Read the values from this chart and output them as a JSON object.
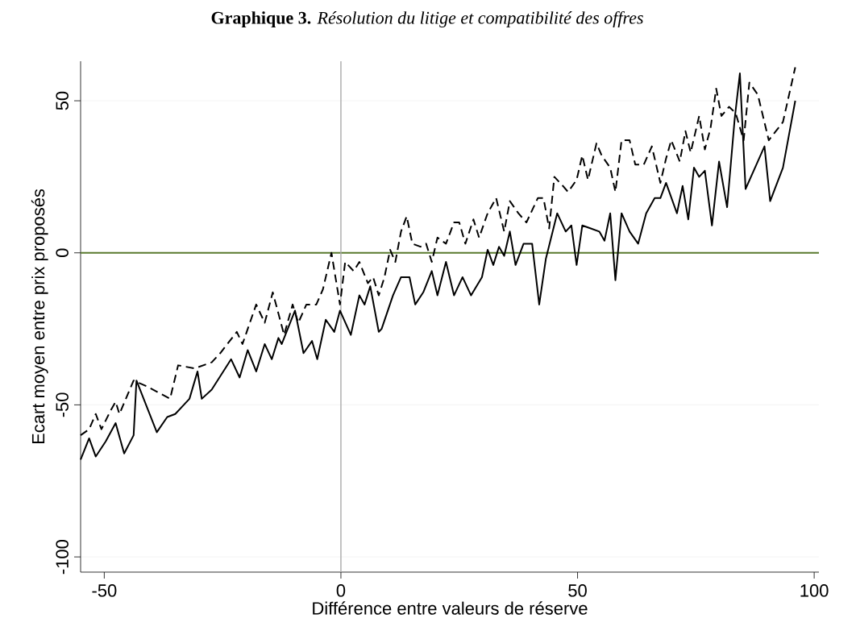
{
  "chart_data": {
    "type": "line",
    "title": "**Graphique 3.** *Résolution du litige et compatibilité des offres*",
    "xlabel": "Différence entre valeurs de réserve",
    "ylabel": "Ecart moyen entre prix proposés",
    "xlim": [
      -55,
      101
    ],
    "ylim": [
      -105,
      63
    ],
    "xticks": [
      -50,
      0,
      50,
      100
    ],
    "yticks": [
      -100,
      -50,
      0,
      50
    ],
    "grid": "y",
    "ref_lines": [
      {
        "axis": "y",
        "value": 0,
        "color": "#5a7a2e",
        "line_style": "solid"
      },
      {
        "axis": "x",
        "value": 0,
        "color": "#aaaaaa",
        "line_style": "solid"
      }
    ],
    "series": [
      {
        "color": "#000000",
        "line_style": "solid",
        "x": [
          -55,
          -53.2,
          -51.8,
          -49.7,
          -47.6,
          -45.8,
          -43.8,
          -43.2,
          -38.9,
          -36.7,
          -35,
          -32,
          -30.3,
          -29.4,
          -27.3,
          -23.2,
          -21.4,
          -19.7,
          -17.9,
          -16.1,
          -14.6,
          -13.2,
          -12.5,
          -9.7,
          -7.9,
          -6.1,
          -5,
          -3.2,
          -1.4,
          -0.2,
          2.1,
          3.9,
          5,
          6.2,
          8,
          8.6,
          11,
          12.7,
          14.5,
          15.7,
          17.4,
          19.2,
          20.4,
          22.2,
          23.9,
          25.7,
          27.5,
          29.8,
          31,
          32.2,
          33.4,
          34.5,
          35.7,
          36.9,
          38.6,
          40.4,
          41.9,
          43.3,
          45.7,
          47.5,
          48.7,
          49.8,
          51,
          52.8,
          54.6,
          55.7,
          56.9,
          58,
          59.3,
          61,
          62.8,
          64.5,
          66.3,
          67.5,
          68.7,
          71,
          72.2,
          73.4,
          74.6,
          75.7,
          76.9,
          78.4,
          79.9,
          81.6,
          83.2,
          84.3,
          85.5,
          87.5,
          89.5,
          90.7,
          93.4,
          96
        ],
        "values": [
          -68,
          -61,
          -67,
          -62,
          -56,
          -66,
          -60,
          -42,
          -59,
          -54,
          -53,
          -48,
          -39,
          -48,
          -45,
          -35,
          -41,
          -32,
          -39,
          -30,
          -35,
          -28,
          -30,
          -19,
          -33,
          -29,
          -35,
          -22,
          -26,
          -19,
          -27,
          -14,
          -17,
          -11,
          -26,
          -25,
          -14,
          -8,
          -8,
          -17,
          -13,
          -6,
          -14,
          -3,
          -14,
          -8,
          -14,
          -8,
          1,
          -4,
          2,
          -1,
          7,
          -4,
          3,
          3,
          -17,
          -2,
          13,
          7,
          9,
          -4,
          9,
          8,
          7,
          4,
          13,
          -9,
          13,
          7,
          3,
          13,
          18,
          18,
          23,
          13,
          22,
          11,
          28,
          25,
          27,
          9,
          30,
          15,
          44,
          59,
          21,
          28,
          35,
          17,
          28,
          50
        ]
      },
      {
        "color": "#000000",
        "line_style": "dashed",
        "x": [
          -55,
          -53.2,
          -51.8,
          -50.6,
          -48.7,
          -47.6,
          -46.8,
          -43.8,
          -40.9,
          -36.1,
          -34.4,
          -30.9,
          -27.3,
          -25.5,
          -22,
          -20.8,
          -17.9,
          -16.1,
          -14.4,
          -12,
          -10.2,
          -9,
          -7.3,
          -5.2,
          -3.8,
          -2,
          -0.2,
          0.9,
          2.7,
          3.9,
          5.7,
          6.8,
          8,
          9.2,
          10.4,
          11.5,
          12.7,
          13.9,
          15.1,
          16.8,
          18,
          19.2,
          20.4,
          22.2,
          23.9,
          25,
          26.3,
          28,
          29.2,
          31,
          32.8,
          34.5,
          35.7,
          37.5,
          39.2,
          41.6,
          42.8,
          44,
          45.1,
          46.9,
          48,
          49.8,
          51,
          52.2,
          54,
          55.1,
          56.9,
          58,
          59.3,
          61,
          62.2,
          64,
          65.7,
          67.5,
          68.7,
          69.8,
          71.6,
          72.8,
          73.9,
          75.7,
          76.9,
          78.1,
          79.3,
          80.4,
          82,
          83.4,
          85.1,
          86.3,
          88.1,
          90.4,
          93.4,
          96
        ],
        "values": [
          -60,
          -58,
          -53,
          -58,
          -52,
          -49,
          -53,
          -42,
          -44,
          -48,
          -37,
          -38,
          -36,
          -33,
          -26,
          -30,
          -17,
          -23,
          -13,
          -27,
          -17,
          -23,
          -17,
          -17,
          -12,
          0,
          -17,
          -3,
          -6,
          -3,
          -10,
          -8,
          -14,
          -8,
          1,
          -3,
          7,
          12,
          3,
          2,
          3,
          -3,
          5,
          3,
          10,
          10,
          3,
          11,
          5,
          13,
          18,
          7,
          17,
          13,
          10,
          18,
          18,
          8,
          25,
          22,
          20,
          24,
          32,
          24,
          36,
          32,
          28,
          20,
          37,
          37,
          29,
          29,
          35,
          23,
          31,
          37,
          30,
          40,
          33,
          45,
          34,
          41,
          54,
          45,
          48,
          46,
          37,
          56,
          52,
          37,
          43,
          61
        ]
      }
    ]
  }
}
